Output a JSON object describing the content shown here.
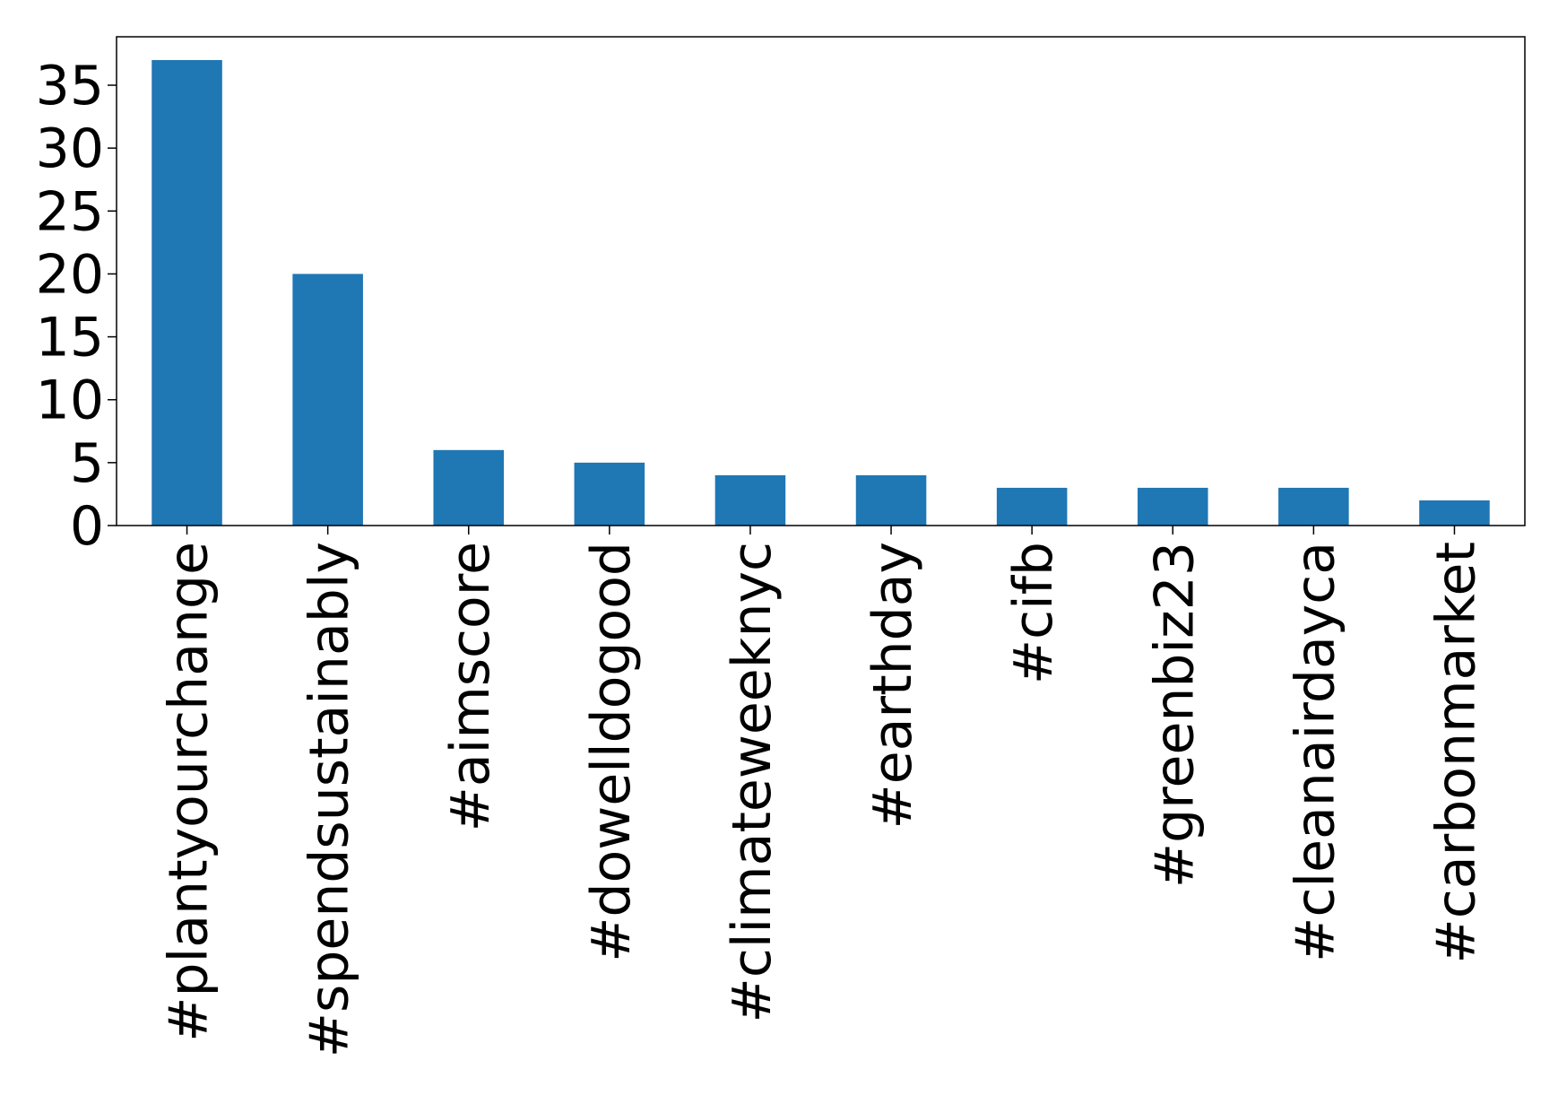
{
  "chart_data": {
    "type": "bar",
    "title": "",
    "xlabel": "",
    "ylabel": "",
    "categories": [
      "#plantyourchange",
      "#spendsustainably",
      "#aimscore",
      "#dowelldogood",
      "#climateweeknyc",
      "#earthday",
      "#cifb",
      "#greenbiz23",
      "#cleanairdayca",
      "#carbonmarket"
    ],
    "values": [
      37,
      20,
      6,
      5,
      4,
      4,
      3,
      3,
      3,
      2
    ],
    "ylim": [
      0,
      38.85
    ],
    "yticks": [
      0,
      5,
      10,
      15,
      20,
      25,
      30,
      35
    ],
    "bar_color": "#1f77b4",
    "grid": false,
    "legend": "none"
  }
}
